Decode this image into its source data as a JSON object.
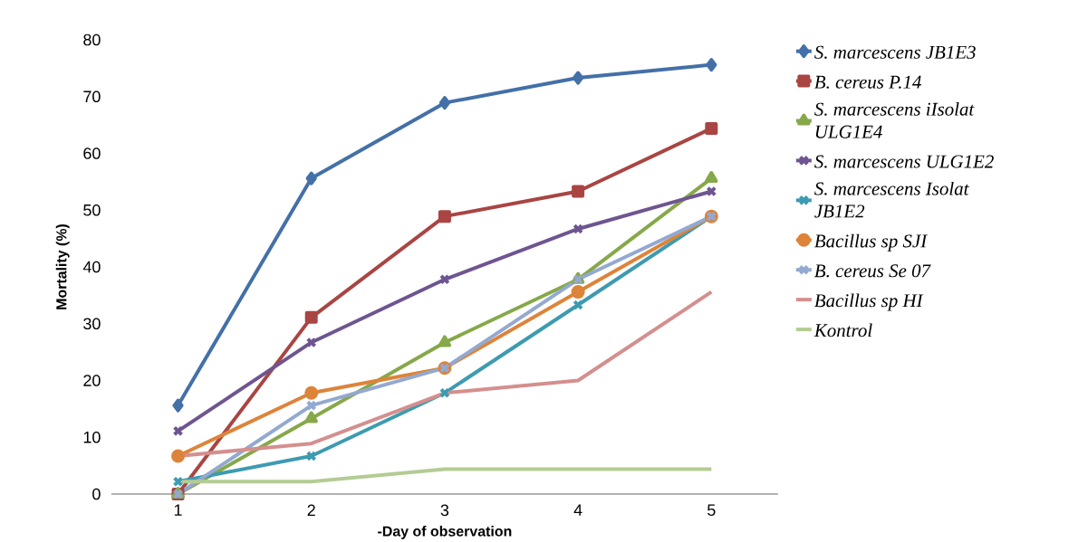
{
  "chart_data": {
    "type": "line",
    "xlabel": "-Day of observation",
    "ylabel": "Mortality (%)",
    "categories": [
      "1",
      "2",
      "3",
      "4",
      "5"
    ],
    "ylim": [
      0,
      80
    ],
    "yticks": [
      0,
      10,
      20,
      30,
      40,
      50,
      60,
      70,
      80
    ],
    "grid": false,
    "legend": "right",
    "line_style": "solid",
    "series": [
      {
        "name": "*S. marcescens JB1E3*",
        "color": "#4470a8",
        "marker": "diamond",
        "values": [
          15.6,
          55.6,
          68.9,
          73.3,
          75.6
        ]
      },
      {
        "name": "*B. cereus P.14*",
        "color": "#a94543",
        "marker": "square",
        "values": [
          0,
          31.1,
          48.9,
          53.3,
          64.4
        ]
      },
      {
        "name": "*S. marcescens iIsolat ULG1E4*",
        "color": "#86a84a",
        "marker": "triangle",
        "values": [
          0,
          13.3,
          26.7,
          37.8,
          55.6
        ]
      },
      {
        "name": "*S. marcescens ULG1E2*",
        "color": "#6e5591",
        "marker": "cross",
        "values": [
          11.1,
          26.7,
          37.8,
          46.7,
          53.3
        ]
      },
      {
        "name": "*S. marcescens Isolat JB1E2*",
        "color": "#3d9bb1",
        "marker": "cross",
        "values": [
          2.2,
          6.7,
          17.8,
          33.3,
          48.9
        ]
      },
      {
        "name": "*Bacillus sp SJI*",
        "color": "#dd843a",
        "marker": "circle",
        "values": [
          6.7,
          17.8,
          22.2,
          35.6,
          48.9
        ]
      },
      {
        "name": "*B. cereus Se 07*",
        "color": "#93a9d0",
        "marker": "cross",
        "values": [
          0,
          15.6,
          22.2,
          37.8,
          48.9
        ]
      },
      {
        "name": "*Bacillus sp HI*",
        "color": "#d48f8e",
        "marker": "none",
        "values": [
          6.7,
          8.9,
          17.8,
          20,
          35.6
        ]
      },
      {
        "name": "*Kontrol*",
        "color": "#b4cc94",
        "marker": "none",
        "values": [
          2.2,
          2.2,
          4.4,
          4.4,
          4.4
        ]
      }
    ]
  }
}
